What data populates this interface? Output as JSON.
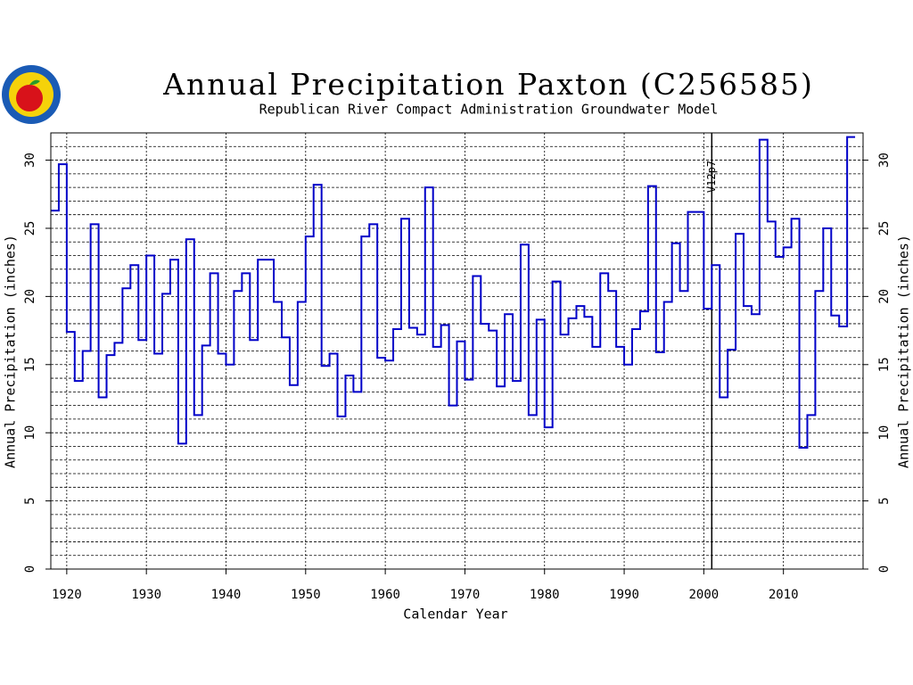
{
  "chart_data": {
    "type": "step",
    "title": "Annual Precipitation Paxton (C256585)",
    "subtitle": "Republican River Compact Administration Groundwater Model",
    "x_label": "Calendar Year",
    "y_label": "Annual Precipitation (inches)",
    "x": [
      1918,
      1919,
      1920,
      1921,
      1922,
      1923,
      1924,
      1925,
      1926,
      1927,
      1928,
      1929,
      1930,
      1931,
      1932,
      1933,
      1934,
      1935,
      1936,
      1937,
      1938,
      1939,
      1940,
      1941,
      1942,
      1943,
      1944,
      1945,
      1946,
      1947,
      1948,
      1949,
      1950,
      1951,
      1952,
      1953,
      1954,
      1955,
      1956,
      1957,
      1958,
      1959,
      1960,
      1961,
      1962,
      1963,
      1964,
      1965,
      1966,
      1967,
      1968,
      1969,
      1970,
      1971,
      1972,
      1973,
      1974,
      1975,
      1976,
      1977,
      1978,
      1979,
      1980,
      1981,
      1982,
      1983,
      1984,
      1985,
      1986,
      1987,
      1988,
      1989,
      1990,
      1991,
      1992,
      1993,
      1994,
      1995,
      1996,
      1997,
      1998,
      1999,
      2000,
      2001,
      2002,
      2003,
      2004,
      2005,
      2006,
      2007,
      2008,
      2009,
      2010,
      2011,
      2012,
      2013,
      2014,
      2015,
      2016,
      2017,
      2018
    ],
    "series": [
      {
        "name": "Annual Precipitation",
        "color": "#0000c8",
        "values": [
          26.3,
          29.7,
          17.4,
          13.8,
          16.0,
          25.3,
          12.6,
          15.7,
          16.6,
          20.6,
          22.3,
          16.8,
          23.0,
          15.8,
          20.2,
          22.7,
          9.2,
          24.2,
          11.3,
          16.4,
          21.7,
          15.8,
          15.0,
          20.4,
          21.7,
          16.8,
          22.7,
          22.7,
          19.6,
          17.0,
          13.5,
          19.6,
          24.4,
          28.2,
          14.9,
          15.8,
          11.2,
          14.2,
          13.0,
          24.4,
          25.3,
          15.5,
          15.3,
          17.6,
          25.7,
          17.7,
          17.2,
          28.0,
          16.3,
          17.9,
          12.0,
          16.7,
          13.9,
          21.5,
          18.0,
          17.5,
          13.4,
          18.7,
          13.8,
          23.8,
          11.3,
          18.3,
          10.4,
          21.1,
          17.2,
          18.4,
          19.3,
          18.5,
          16.3,
          21.7,
          20.4,
          16.3,
          15.0,
          17.6,
          18.9,
          28.1,
          15.9,
          19.6,
          23.9,
          20.4,
          26.2,
          26.2,
          19.1,
          22.3,
          12.6,
          16.1,
          24.6,
          19.3,
          18.7,
          31.5,
          25.5,
          22.9,
          23.6,
          25.7,
          8.9,
          11.3,
          20.4,
          25.0,
          18.6,
          17.8,
          31.7
        ]
      }
    ],
    "xlim": [
      1918,
      2020
    ],
    "ylim": [
      0,
      32
    ],
    "xticks": [
      1920,
      1930,
      1940,
      1950,
      1960,
      1970,
      1980,
      1990,
      2000,
      2010
    ],
    "yticks": [
      0,
      5,
      10,
      15,
      20,
      25,
      30
    ],
    "minor_yticks": [
      1,
      2,
      3,
      4,
      6,
      7,
      8,
      9,
      11,
      12,
      13,
      14,
      16,
      17,
      18,
      19,
      21,
      22,
      23,
      24,
      26,
      27,
      28,
      29,
      31
    ],
    "grid": true,
    "annotation": {
      "x": 2001,
      "label": "V12p7"
    }
  }
}
